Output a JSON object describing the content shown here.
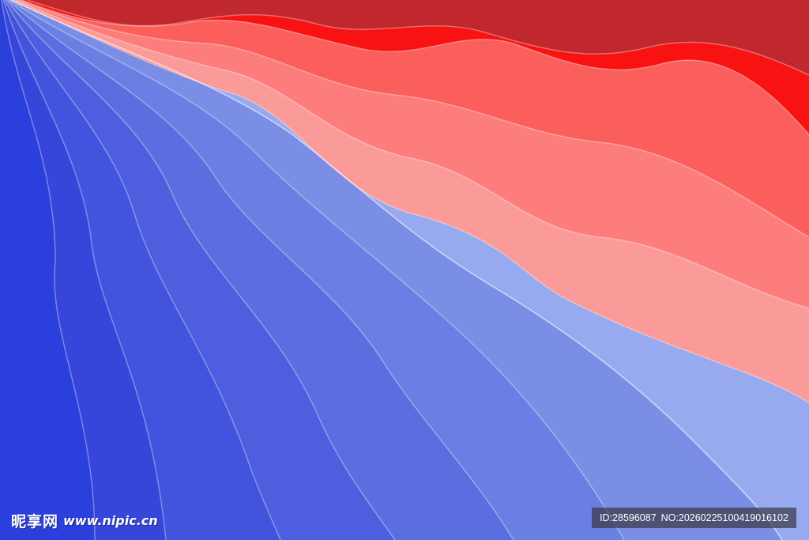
{
  "image": {
    "subject": "wave-background",
    "colors": {
      "red_band_0": "#c0282e",
      "red_band_1": "#f81212",
      "red_band_2": "#fb5f5c",
      "red_band_3": "#fc7d7b",
      "red_band_4": "#fb9b99",
      "blue_band_5": "#98aaef",
      "blue_band_6": "#7b8ee6",
      "blue_band_7": "#6a7fe3",
      "blue_band_8": "#5a6ee0",
      "blue_band_9": "#4d5fde",
      "blue_band_10": "#4253dd",
      "blue_band_11": "#3746da",
      "blue_band_12": "#2a3fdc",
      "stroke_light": "#ffffff"
    }
  },
  "watermark": {
    "brand": "昵享网",
    "site": "www.nipic.cn"
  },
  "id_bar": {
    "id_text": "ID:28596087",
    "no_text": "NO:20260225100419016102"
  }
}
